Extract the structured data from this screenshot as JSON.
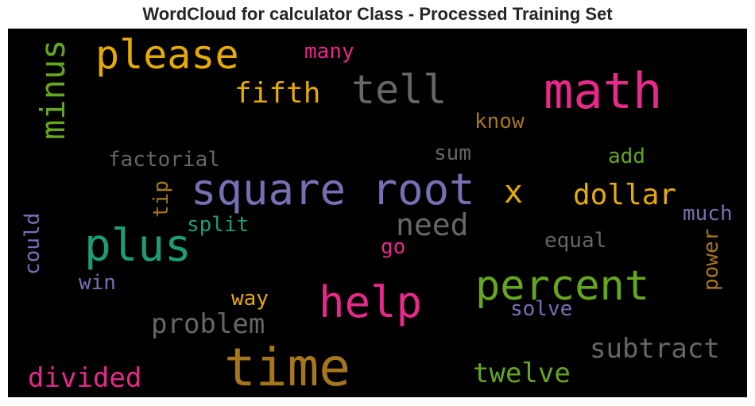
{
  "title": "WordCloud for calculator Class - Processed Training Set",
  "colors": {
    "background": "#000000",
    "pink": "#e7298a",
    "green": "#66a61e",
    "gold": "#e6ab02",
    "gray": "#666666",
    "purple": "#7570b3",
    "teal": "#1b9e77",
    "brown": "#a6761d"
  },
  "words": [
    {
      "text": "please",
      "color": "gold"
    },
    {
      "text": "many",
      "color": "pink"
    },
    {
      "text": "minus",
      "color": "green"
    },
    {
      "text": "tell",
      "color": "gray"
    },
    {
      "text": "math",
      "color": "pink"
    },
    {
      "text": "fifth",
      "color": "gold"
    },
    {
      "text": "know",
      "color": "brown"
    },
    {
      "text": "sum",
      "color": "gray"
    },
    {
      "text": "factorial",
      "color": "gray"
    },
    {
      "text": "add",
      "color": "green"
    },
    {
      "text": "square root",
      "color": "purple"
    },
    {
      "text": "x",
      "color": "gold"
    },
    {
      "text": "dollar",
      "color": "gold"
    },
    {
      "text": "tip",
      "color": "brown"
    },
    {
      "text": "split",
      "color": "teal"
    },
    {
      "text": "need",
      "color": "gray"
    },
    {
      "text": "much",
      "color": "purple"
    },
    {
      "text": "plus",
      "color": "teal"
    },
    {
      "text": "could",
      "color": "purple"
    },
    {
      "text": "equal",
      "color": "gray"
    },
    {
      "text": "go",
      "color": "pink"
    },
    {
      "text": "power",
      "color": "brown"
    },
    {
      "text": "percent",
      "color": "green"
    },
    {
      "text": "win",
      "color": "purple"
    },
    {
      "text": "help",
      "color": "pink"
    },
    {
      "text": "way",
      "color": "gold"
    },
    {
      "text": "solve",
      "color": "purple"
    },
    {
      "text": "problem",
      "color": "gray"
    },
    {
      "text": "subtract",
      "color": "gray"
    },
    {
      "text": "time",
      "color": "brown"
    },
    {
      "text": "divided",
      "color": "pink"
    },
    {
      "text": "twelve",
      "color": "green"
    }
  ]
}
